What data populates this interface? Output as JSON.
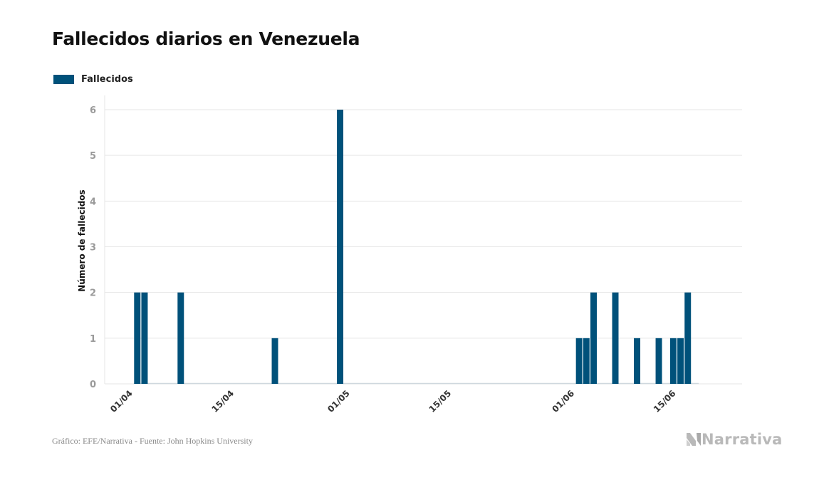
{
  "title": "Fallecidos diarios en Venezuela",
  "colors": {
    "bar": "#00517a",
    "grid": "#e6e6e6",
    "tick_text": "#9a9a9a",
    "axis_title": "#111111",
    "logo": "#b9b9b9"
  },
  "chart_data": {
    "type": "bar",
    "title": "Fallecidos diarios en Venezuela",
    "ylabel": "Número de fallecidos",
    "xlabel": "",
    "ylim": [
      0,
      6
    ],
    "yticks": [
      0,
      1,
      2,
      3,
      4,
      5,
      6
    ],
    "grid": true,
    "legend_placement": "top-left",
    "x_range": [
      "2020-03-29",
      "2020-06-25"
    ],
    "x_tick_labels": [
      {
        "date": "2020-04-01",
        "label": "01/04"
      },
      {
        "date": "2020-04-15",
        "label": "15/04"
      },
      {
        "date": "2020-05-01",
        "label": "01/05"
      },
      {
        "date": "2020-05-15",
        "label": "15/05"
      },
      {
        "date": "2020-06-01",
        "label": "01/06"
      },
      {
        "date": "2020-06-15",
        "label": "15/06"
      }
    ],
    "series": [
      {
        "name": "Fallecidos",
        "color": "#00517a",
        "x_start": "2020-04-02",
        "x_end": "2020-06-18",
        "points": [
          {
            "x": "2020-04-02",
            "y": 2
          },
          {
            "x": "2020-04-03",
            "y": 2
          },
          {
            "x": "2020-04-08",
            "y": 2
          },
          {
            "x": "2020-04-21",
            "y": 1
          },
          {
            "x": "2020-04-30",
            "y": 6
          },
          {
            "x": "2020-06-02",
            "y": 1
          },
          {
            "x": "2020-06-03",
            "y": 1
          },
          {
            "x": "2020-06-04",
            "y": 2
          },
          {
            "x": "2020-06-07",
            "y": 2
          },
          {
            "x": "2020-06-10",
            "y": 1
          },
          {
            "x": "2020-06-13",
            "y": 1
          },
          {
            "x": "2020-06-15",
            "y": 1
          },
          {
            "x": "2020-06-16",
            "y": 1
          },
          {
            "x": "2020-06-17",
            "y": 2
          }
        ]
      }
    ]
  },
  "footer": "Gráfico: EFE/Narrativa - Fuente: John Hopkins University",
  "logo": {
    "text": "Narrativa",
    "icon": "narrativa-logo-icon"
  }
}
